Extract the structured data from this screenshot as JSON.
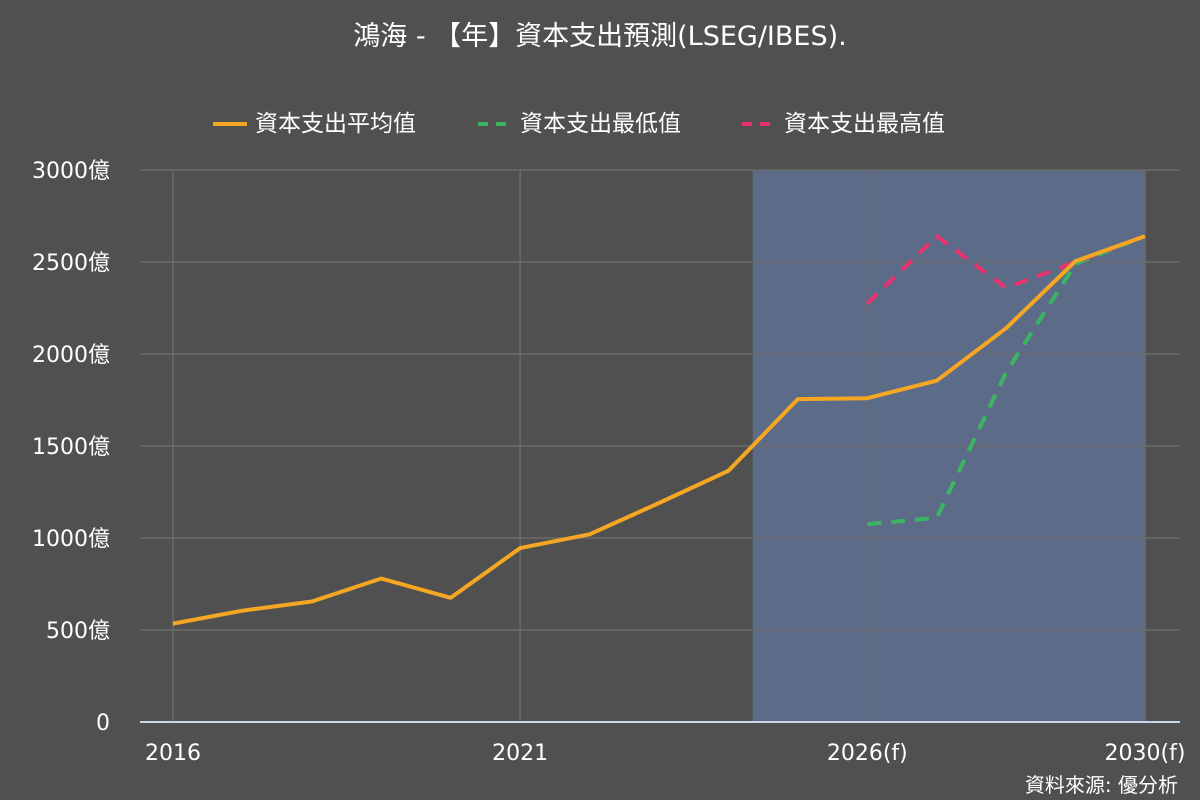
{
  "title": "鴻海 - 【年】資本支出預測(LSEG/IBES).",
  "source": "資料來源: 優分析",
  "colors": {
    "background": "#505050",
    "forecast_band": "#5c6b87",
    "grid": "#6a6a6a",
    "baseline": "#c9d6ee",
    "average": "#f5a623",
    "low": "#3cb563",
    "high": "#e8336f"
  },
  "chart_data": {
    "type": "line",
    "title": "鴻海 - 【年】資本支出預測(LSEG/IBES).",
    "xlabel": "",
    "ylabel": "",
    "x": [
      2016,
      2017,
      2018,
      2019,
      2020,
      2021,
      2022,
      2023,
      2024,
      2025,
      2026,
      2027,
      2028,
      2029,
      2030
    ],
    "x_tick_values": [
      2016,
      2021,
      2026,
      2030
    ],
    "x_tick_labels": [
      "2016",
      "2021",
      "2026(f)",
      "2030(f)"
    ],
    "y_tick_values": [
      0,
      500,
      1000,
      1500,
      2000,
      2500,
      3000
    ],
    "y_tick_labels": [
      "0",
      "500億",
      "1000億",
      "1500億",
      "2000億",
      "2500億",
      "3000億"
    ],
    "ylim": [
      0,
      3000
    ],
    "xlim": [
      2016,
      2030
    ],
    "forecast_band": [
      2024.35,
      2030
    ],
    "grid": true,
    "legend_position": "top-center",
    "series": [
      {
        "name": "資本支出平均值",
        "style": "solid",
        "color": "#f5a623",
        "points": [
          [
            2016,
            535
          ],
          [
            2017,
            605
          ],
          [
            2018,
            655
          ],
          [
            2019,
            780
          ],
          [
            2020,
            675
          ],
          [
            2021,
            945
          ],
          [
            2022,
            1020
          ],
          [
            2023,
            1190
          ],
          [
            2024,
            1365
          ],
          [
            2025,
            1755
          ],
          [
            2026,
            1760
          ],
          [
            2027,
            1855
          ],
          [
            2028,
            2140
          ],
          [
            2029,
            2505
          ],
          [
            2030,
            2640
          ]
        ]
      },
      {
        "name": "資本支出最低值",
        "style": "dashed",
        "color": "#3cb563",
        "points": [
          [
            2026,
            1075
          ],
          [
            2027,
            1110
          ],
          [
            2028,
            1900
          ],
          [
            2029,
            2490
          ],
          [
            2030,
            2640
          ]
        ]
      },
      {
        "name": "資本支出最高值",
        "style": "dashed",
        "color": "#e8336f",
        "points": [
          [
            2026,
            2275
          ],
          [
            2027,
            2640
          ],
          [
            2028,
            2360
          ],
          [
            2029,
            2500
          ],
          [
            2030,
            2640
          ]
        ]
      }
    ]
  }
}
